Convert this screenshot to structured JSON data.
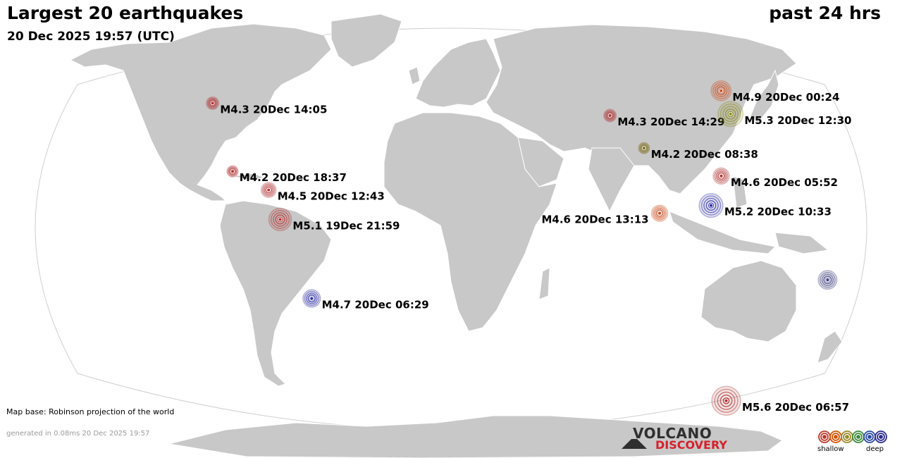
{
  "header": {
    "title": "Largest 20 earthquakes",
    "datetime": "20 Dec 2025 19:57 (UTC)",
    "period": "past 24 hrs"
  },
  "footer": {
    "map_base": "Map base: Robinson projection of the world",
    "generated": "generated in 0.08ms 20 Dec 2025 19:57"
  },
  "logo": {
    "line1": "VOLCANO",
    "line2": "DISCOVERY"
  },
  "legend": {
    "shallow": "shallow",
    "deep": "deep",
    "colors": [
      "#c0392b",
      "#d35400",
      "#9a8a2a",
      "#3a8a3a",
      "#2a4aa0",
      "#2a2a8a"
    ]
  },
  "colors": {
    "ocean": "#ffffff",
    "land": "#c8c8c8",
    "border": "#ffffff",
    "shallow": "#c0392b",
    "shallow_orange": "#d35400",
    "intermediate": "#8a7a20",
    "deep": "#2a2aa0",
    "deep_purple": "#3a3a7a"
  },
  "earthquakes": [
    {
      "label": "M4.3 20Dec 14:05",
      "mag": 4.3,
      "color": "#b03030",
      "lon": -122.5,
      "lat": 39.0
    },
    {
      "label": "M4.2 20Dec 18:37",
      "mag": 4.2,
      "color": "#b03030",
      "lon": -103.0,
      "lat": 17.0
    },
    {
      "label": "M4.5 20Dec 12:43",
      "mag": 4.5,
      "color": "#b03030",
      "lon": -85.0,
      "lat": 11.0
    },
    {
      "label": "M5.1 19Dec 21:59",
      "mag": 5.1,
      "color": "#b03030",
      "lon": -79.0,
      "lat": 1.5
    },
    {
      "label": "M4.7 20Dec 06:29",
      "mag": 4.7,
      "color": "#2a2aa0",
      "lon": -67.0,
      "lat": -24.0
    },
    {
      "label": "M4.3 20Dec 14:29",
      "mag": 4.3,
      "color": "#b03030",
      "lon": 80.0,
      "lat": 35.0
    },
    {
      "label": "M4.2 20Dec 08:38",
      "mag": 4.2,
      "color": "#7a6a1a",
      "lon": 93.0,
      "lat": 24.5
    },
    {
      "label": "M4.9 20Dec 00:24",
      "mag": 4.9,
      "color": "#cc4a1a",
      "lon": 142.0,
      "lat": 43.0
    },
    {
      "label": "M5.3 20Dec 12:30",
      "mag": 5.3,
      "color": "#8a8a20",
      "lon": 141.0,
      "lat": 35.5
    },
    {
      "label": "M4.6 20Dec 05:52",
      "mag": 4.6,
      "color": "#b03030",
      "lon": 127.0,
      "lat": 15.5
    },
    {
      "label": "M5.2 20Dec 10:33",
      "mag": 5.2,
      "color": "#2a2aa0",
      "lon": 120.5,
      "lat": 6.0
    },
    {
      "label": "M4.6 20Dec 13:13",
      "mag": 4.6,
      "color": "#cc4a1a",
      "lon": 96.5,
      "lat": 3.5
    },
    {
      "label": "",
      "mag": 4.8,
      "color": "#3a3a7a",
      "lon": 178.0,
      "lat": -18.0
    },
    {
      "label": "M5.6 20Dec 06:57",
      "mag": 5.6,
      "color": "#b03030",
      "lon": 160.0,
      "lat": -57.0
    }
  ]
}
